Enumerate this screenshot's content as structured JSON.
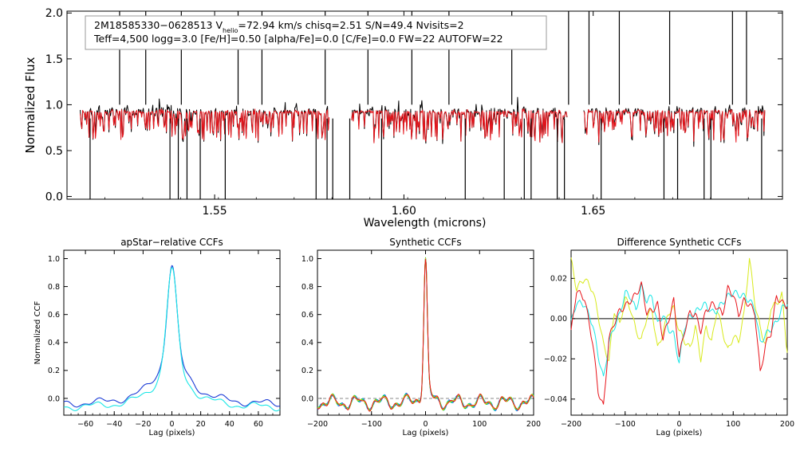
{
  "colors": {
    "axis": "#000000",
    "black": "#000000",
    "red": "#e8141b",
    "blue": "#1b3bd6",
    "cyan": "#19e6e6",
    "green": "#22b822",
    "yellow": "#d8ea1c",
    "gray": "#888888"
  },
  "main": {
    "info_line1_parts": [
      "2M18585330−0628513  V",
      "helio",
      "=72.94 km/s  chisq=2.51  S/N=49.4  Nvisits=2"
    ],
    "info_line2": "Teff=4,500 logg=3.0 [Fe/H]=0.50 [alpha/Fe]=0.0 [C/Fe]=0.0 FW=22 AUTOFW=22"
  },
  "chart_data": [
    {
      "type": "line",
      "title": "",
      "xlabel": "Wavelength (microns)",
      "ylabel": "Normalized Flux",
      "xlim": [
        1.511,
        1.7
      ],
      "ylim": [
        -0.03,
        2.02
      ],
      "xticks": [
        1.55,
        1.6,
        1.65
      ],
      "xtick_labels": [
        "1.55",
        "1.60",
        "1.65"
      ],
      "yticks": [
        0.0,
        0.5,
        1.0,
        1.5,
        2.0
      ],
      "ytick_labels": [
        "0.0",
        "0.5",
        "1.0",
        "1.5",
        "2.0"
      ],
      "chips": [
        [
          1.5145,
          1.5803
        ],
        [
          1.5862,
          1.6433
        ],
        [
          1.6475,
          1.6955
        ]
      ],
      "continuum": 0.92,
      "series": [
        {
          "name": "observed",
          "color": "black"
        },
        {
          "name": "model",
          "color": "red"
        }
      ],
      "spikes_up": [
        1.5249,
        1.5318,
        1.5412,
        1.5562,
        1.5625,
        1.5792,
        1.5905,
        1.6021,
        1.6119,
        1.6285,
        1.6435,
        1.6489,
        1.6569,
        1.6702,
        1.6868,
        1.6905
      ],
      "drops_down": [
        1.5171,
        1.5382,
        1.5404,
        1.5427,
        1.5462,
        1.5528,
        1.5768,
        1.5797,
        1.5812,
        1.5857,
        1.5941,
        1.6162,
        1.6265,
        1.6318,
        1.6336,
        1.6405,
        1.6424,
        1.6521,
        1.6687,
        1.6723,
        1.6793,
        1.6811,
        1.6945
      ]
    },
    {
      "type": "line",
      "title": "apStar−relative CCFs",
      "xlabel": "Lag (pixels)",
      "ylabel": "Normalized CCF",
      "xlim": [
        -75,
        75
      ],
      "ylim": [
        -0.12,
        1.06
      ],
      "xticks": [
        -60,
        -40,
        -20,
        0,
        20,
        40,
        60
      ],
      "xtick_labels": [
        "−60",
        "−40",
        "−20",
        "0",
        "20",
        "40",
        "60"
      ],
      "yticks": [
        0.0,
        0.2,
        0.4,
        0.6,
        0.8,
        1.0
      ],
      "ytick_labels": [
        "0.0",
        "0.2",
        "0.4",
        "0.6",
        "0.8",
        "1.0"
      ],
      "series": [
        {
          "name": "visit 1",
          "color": "blue",
          "peak": 1.0,
          "width": 3.2,
          "wing": 0.34,
          "wing_width": 14,
          "floor": -0.05
        },
        {
          "name": "visit 2",
          "color": "cyan",
          "peak": 0.99,
          "width": 3.5,
          "wing": 0.31,
          "wing_width": 13,
          "floor": -0.07
        }
      ]
    },
    {
      "type": "line",
      "title": "Synthetic CCFs",
      "xlabel": "Lag (pixels)",
      "ylabel": "",
      "xlim": [
        -200,
        200
      ],
      "ylim": [
        -0.12,
        1.06
      ],
      "xticks": [
        -200,
        -100,
        0,
        100,
        200
      ],
      "xtick_labels": [
        "−200",
        "−100",
        "0",
        "100",
        "200"
      ],
      "yticks": [
        0.0,
        0.2,
        0.4,
        0.6,
        0.8,
        1.0
      ],
      "ytick_labels": [
        "0.0",
        "0.2",
        "0.4",
        "0.6",
        "0.8",
        "1.0"
      ],
      "zero_line": true,
      "series": [
        {
          "name": "blue",
          "color": "blue"
        },
        {
          "name": "cyan",
          "color": "cyan"
        },
        {
          "name": "green",
          "color": "green"
        },
        {
          "name": "yellow",
          "color": "yellow"
        },
        {
          "name": "red",
          "color": "red"
        }
      ]
    },
    {
      "type": "line",
      "title": "Difference Synthetic CCFs",
      "xlabel": "Lag (pixels)",
      "ylabel": "",
      "xlim": [
        -200,
        200
      ],
      "ylim": [
        -0.048,
        0.034
      ],
      "xticks": [
        -200,
        -100,
        0,
        100,
        200
      ],
      "xtick_labels": [
        "−200",
        "−100",
        "0",
        "100",
        "200"
      ],
      "yticks": [
        -0.04,
        -0.02,
        0.0,
        0.02
      ],
      "ytick_labels": [
        "−0.04",
        "−0.02",
        "0.00",
        "0.02"
      ],
      "zero_line": true,
      "series": [
        {
          "name": "yellow",
          "color": "yellow",
          "x": [
            -200,
            -190,
            -175,
            -160,
            -150,
            -140,
            -130,
            -120,
            -110,
            -100,
            -90,
            -80,
            -70,
            -60,
            -50,
            -40,
            -30,
            -20,
            -10,
            0,
            10,
            20,
            30,
            40,
            50,
            60,
            70,
            80,
            90,
            100,
            110,
            120,
            130,
            140,
            150,
            160,
            170,
            180,
            190,
            200
          ],
          "y": [
            0.029,
            0.015,
            0.02,
            0.014,
            0.002,
            -0.013,
            -0.021,
            0.004,
            -0.003,
            0.01,
            0.005,
            -0.006,
            -0.011,
            0.001,
            0.004,
            -0.015,
            -0.007,
            0.003,
            0.005,
            -0.006,
            -0.011,
            -0.015,
            -0.004,
            -0.02,
            -0.004,
            -0.012,
            0.005,
            -0.006,
            -0.016,
            -0.009,
            -0.011,
            0.002,
            0.03,
            0.008,
            -0.005,
            -0.013,
            0.006,
            0.007,
            0.012,
            -0.017
          ]
        },
        {
          "name": "cyan",
          "color": "cyan",
          "x": [
            -200,
            -190,
            -175,
            -160,
            -150,
            -140,
            -130,
            -120,
            -110,
            -100,
            -90,
            -80,
            -70,
            -60,
            -50,
            -40,
            -30,
            -20,
            -10,
            0,
            10,
            20,
            30,
            40,
            50,
            60,
            70,
            80,
            90,
            100,
            110,
            120,
            130,
            140,
            150,
            160,
            170,
            180,
            190,
            200
          ],
          "y": [
            -0.002,
            0.008,
            0.007,
            -0.003,
            -0.018,
            -0.03,
            -0.012,
            -0.004,
            0.002,
            0.013,
            0.011,
            0.004,
            0.016,
            0.009,
            0.011,
            -0.003,
            0.002,
            -0.005,
            -0.008,
            -0.022,
            -0.004,
            0.001,
            0.003,
            0.006,
            0.007,
            0.003,
            0.004,
            0.008,
            0.011,
            0.013,
            0.012,
            0.011,
            0.009,
            0.005,
            -0.012,
            -0.008,
            -0.005,
            -0.002,
            0.005,
            0.007
          ]
        },
        {
          "name": "red",
          "color": "red",
          "x": [
            -200,
            -190,
            -175,
            -160,
            -150,
            -140,
            -130,
            -120,
            -110,
            -100,
            -90,
            -80,
            -70,
            -60,
            -50,
            -40,
            -30,
            -20,
            -10,
            0,
            10,
            20,
            30,
            40,
            50,
            60,
            70,
            80,
            90,
            100,
            110,
            120,
            130,
            140,
            150,
            160,
            170,
            180,
            190,
            200
          ],
          "y": [
            -0.007,
            0.014,
            0.01,
            -0.012,
            -0.036,
            -0.044,
            -0.01,
            -0.002,
            0.004,
            0.006,
            0.009,
            0.012,
            0.017,
            0.003,
            0.004,
            0.007,
            -0.01,
            -0.001,
            0.009,
            -0.019,
            -0.006,
            0.003,
            0.002,
            -0.006,
            0.004,
            0.007,
            0.006,
            0.002,
            0.015,
            0.012,
            0.002,
            0.009,
            0.007,
            0.003,
            -0.027,
            -0.013,
            -0.007,
            0.011,
            0.008,
            0.006
          ]
        }
      ]
    }
  ]
}
